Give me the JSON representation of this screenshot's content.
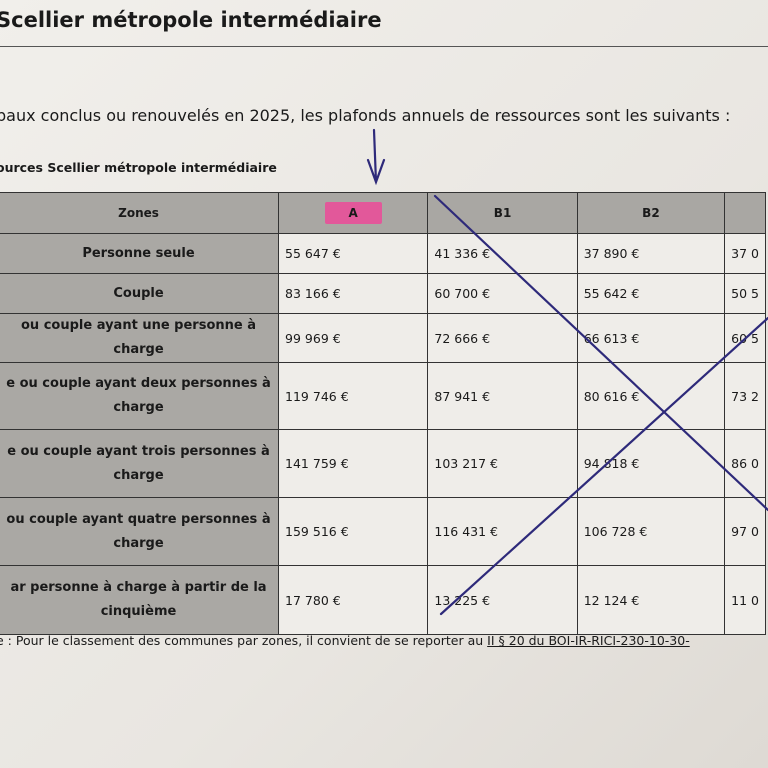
{
  "title": "Scellier métropole intermédiaire",
  "intro": "baux conclus ou renouvelés en 2025, les plafonds annuels de ressources sont les suivants :",
  "caption": "ources Scellier métropole intermédiaire",
  "table": {
    "headers": [
      "Zones",
      "A",
      "B1",
      "B2",
      ""
    ],
    "rows": [
      {
        "label": "Personne seule",
        "values": [
          "55 647 €",
          "41 336 €",
          "37 890 €",
          "37 0"
        ]
      },
      {
        "label": "Couple",
        "values": [
          "83 166 €",
          "60 700 €",
          "55 642 €",
          "50 5"
        ]
      },
      {
        "label": "ou couple ayant une personne à charge",
        "values": [
          "99 969 €",
          "72 666 €",
          "66 613 €",
          "60 5"
        ]
      },
      {
        "label": "e ou couple ayant deux personnes à charge",
        "values": [
          "119 746 €",
          "87 941 €",
          "80 616 €",
          "73 2"
        ]
      },
      {
        "label": "e ou couple ayant trois personnes à charge",
        "values": [
          "141 759 €",
          "103 217 €",
          "94 818 €",
          "86 0"
        ]
      },
      {
        "label": "ou couple ayant quatre personnes à charge",
        "values": [
          "159 516 €",
          "116 431 €",
          "106 728 €",
          "97 0"
        ]
      },
      {
        "label": "ar personne à charge à partir de la cinquième",
        "values": [
          "17 780 €",
          "13 225 €",
          "12 124 €",
          "11 0"
        ]
      }
    ]
  },
  "footnote": {
    "prefix": "e : Pour le classement des communes par zones, il convient de se reporter au ",
    "link": "II § 20 du BOI-IR-RICI-230-10-30-"
  },
  "colors": {
    "highlight": "#e2589a",
    "pen": "#2e2a7a"
  }
}
